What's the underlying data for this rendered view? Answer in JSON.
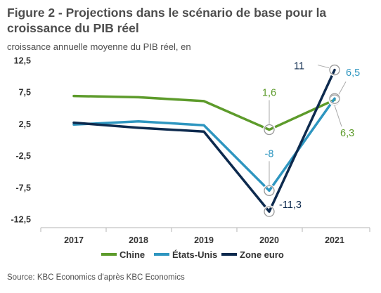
{
  "title": "Figure 2 - Projections dans le scénario de base pour la croissance du PIB réel",
  "subtitle": "croissance annuelle moyenne du PIB réel, en",
  "source": "Source: KBC Economics d'après KBC Economics",
  "chart_data": {
    "type": "line",
    "categories": [
      "2017",
      "2018",
      "2019",
      "2020",
      "2021"
    ],
    "yticks": [
      "12,5",
      "7,5",
      "2,5",
      "-2,5",
      "-7,5",
      "-12,5"
    ],
    "ylim": [
      -12.5,
      12.5
    ],
    "grid": false,
    "legend_position": "bottom",
    "series": [
      {
        "name": "Chine",
        "color": "#5d9b2b",
        "values": [
          6.9,
          6.7,
          6.1,
          1.6,
          6.3
        ]
      },
      {
        "name": "États-Unis",
        "color": "#2e96c0",
        "values": [
          2.4,
          2.9,
          2.3,
          -8,
          6.5
        ]
      },
      {
        "name": "Zone euro",
        "color": "#0d2a4e",
        "values": [
          2.7,
          1.9,
          1.3,
          -11.3,
          11
        ]
      }
    ],
    "annotations": [
      {
        "text": "1,6",
        "series": "Chine",
        "category": "2020",
        "color": "#5d9b2b"
      },
      {
        "text": "6,3",
        "series": "Chine",
        "category": "2021",
        "color": "#5d9b2b"
      },
      {
        "text": "-8",
        "series": "États-Unis",
        "category": "2020",
        "color": "#2e96c0"
      },
      {
        "text": "6,5",
        "series": "États-Unis",
        "category": "2021",
        "color": "#2e96c0"
      },
      {
        "text": "-11,3",
        "series": "Zone euro",
        "category": "2020",
        "color": "#0d2a4e"
      },
      {
        "text": "11",
        "series": "Zone euro",
        "category": "2021",
        "color": "#0d2a4e"
      }
    ]
  }
}
